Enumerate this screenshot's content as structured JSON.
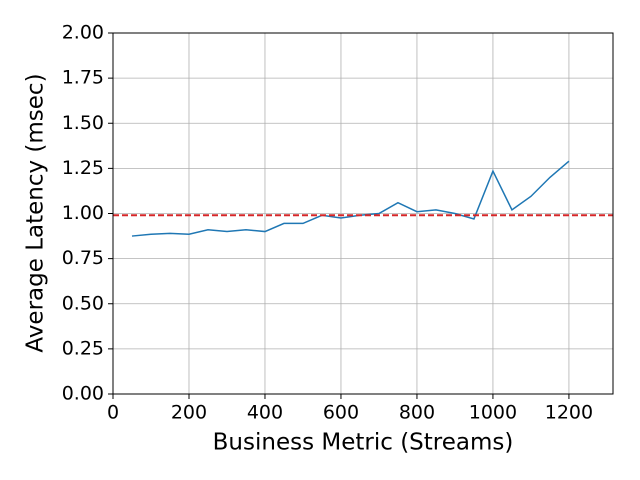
{
  "chart_data": {
    "type": "line",
    "x_label": "Business Metric (Streams)",
    "y_label": "Average Latency (msec)",
    "x": [
      50,
      100,
      150,
      200,
      250,
      300,
      350,
      400,
      450,
      500,
      550,
      600,
      650,
      700,
      750,
      800,
      850,
      900,
      950,
      1000,
      1050,
      1100,
      1150,
      1200
    ],
    "series": [
      {
        "color": "#1f77b4",
        "values": [
          0.875,
          0.885,
          0.89,
          0.885,
          0.91,
          0.9,
          0.91,
          0.9,
          0.945,
          0.945,
          0.99,
          0.975,
          0.99,
          1.0,
          1.06,
          1.01,
          1.02,
          1.0,
          0.97,
          1.235,
          1.02,
          1.095,
          1.2,
          1.29
        ]
      }
    ],
    "reference_line": {
      "value": 0.99,
      "color": "#d62728"
    },
    "xlim": [
      0,
      1316
    ],
    "ylim": [
      0,
      2
    ],
    "xticks": [
      0,
      200,
      400,
      600,
      800,
      1000,
      1200
    ],
    "yticks": [
      {
        "value": 0,
        "label": "0.00"
      },
      {
        "value": 0.25,
        "label": "0.25"
      },
      {
        "value": 0.5,
        "label": "0.50"
      },
      {
        "value": 0.75,
        "label": "0.75"
      },
      {
        "value": 1,
        "label": "1.00"
      },
      {
        "value": 1.25,
        "label": "1.25"
      },
      {
        "value": 1.5,
        "label": "1.50"
      },
      {
        "value": 1.75,
        "label": "1.75"
      },
      {
        "value": 2,
        "label": "2.00"
      }
    ],
    "grid": true
  }
}
